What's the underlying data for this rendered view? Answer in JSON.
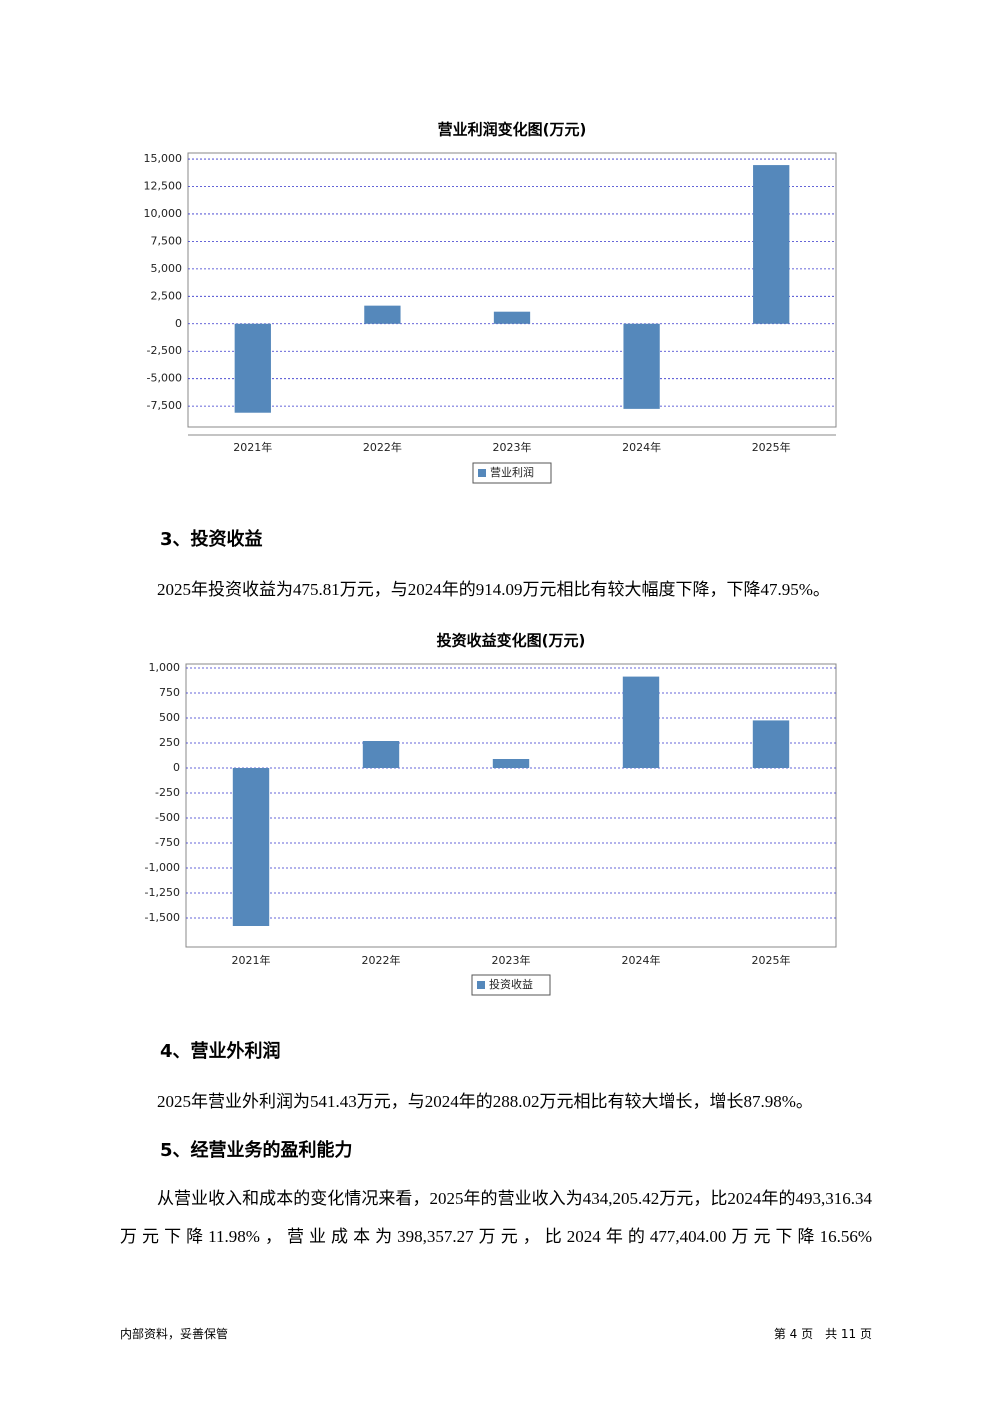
{
  "chart_data": [
    {
      "type": "bar",
      "title": "营业利润变化图(万元)",
      "categories": [
        "2021年",
        "2022年",
        "2023年",
        "2024年",
        "2025年"
      ],
      "series": [
        {
          "name": "营业利润",
          "color": "#5588bb",
          "values": [
            -8100,
            1650,
            1100,
            -7750,
            14450
          ]
        }
      ],
      "ylim": [
        -9400,
        15550
      ],
      "yticks": [
        {
          "value": -7500,
          "label": "-7,500"
        },
        {
          "value": -5000,
          "label": "-5,000"
        },
        {
          "value": -2500,
          "label": "-2,500"
        },
        0,
        {
          "value": 2500,
          "label": "2,500"
        },
        {
          "value": 5000,
          "label": "5,000"
        },
        {
          "value": 7500,
          "label": "7,500"
        },
        {
          "value": 10000,
          "label": "10,000"
        },
        {
          "value": 12500,
          "label": "12,500"
        },
        {
          "value": 15000,
          "label": "15,000"
        }
      ],
      "grid": true
    },
    {
      "type": "bar",
      "title": "投资收益变化图(万元)",
      "categories": [
        "2021年",
        "2022年",
        "2023年",
        "2024年",
        "2025年"
      ],
      "series": [
        {
          "name": "投资收益",
          "color": "#5588bb",
          "values": [
            -1580,
            270,
            90,
            914.09,
            475.81
          ]
        }
      ],
      "ylim": [
        -1790,
        1040
      ],
      "yticks": [
        {
          "value": -1500,
          "label": "-1,500"
        },
        {
          "value": -1250,
          "label": "-1,250"
        },
        {
          "value": -1000,
          "label": "-1,000"
        },
        -750,
        -500,
        -250,
        0,
        250,
        500,
        750,
        {
          "value": 1000,
          "label": "1,000"
        }
      ],
      "grid": true
    }
  ],
  "sections": [
    {
      "heading": "3、投资收益",
      "paragraphs": [
        "2025年投资收益为475.81万元，与2024年的914.09万元相比有较大幅度下降，下降47.95%。"
      ]
    },
    {
      "heading": "4、营业外利润",
      "paragraphs": [
        "2025年营业外利润为541.43万元，与2024年的288.02万元相比有较大增长，增长87.98%。"
      ]
    },
    {
      "heading": "5、经营业务的盈利能力",
      "paragraphs": [
        "从营业收入和成本的变化情况来看，2025年的营业收入为434,205.42万元，比2024年的493,316.34万元下降11.98%，营业成本为398,357.27万元，比2024年的477,404.00万元下降16.56%"
      ]
    }
  ],
  "footer": {
    "left": "内部资料，妥善保管",
    "right": "第 4 页　共 11 页"
  }
}
